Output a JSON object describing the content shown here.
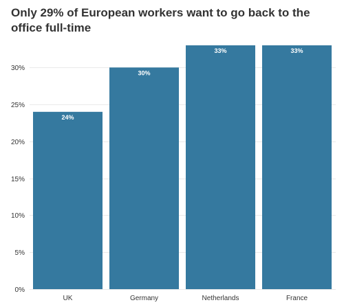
{
  "chart_data": {
    "type": "bar",
    "title": "Only 29% of European workers want to go back to the office full-time",
    "categories": [
      "UK",
      "Germany",
      "Netherlands",
      "France"
    ],
    "values": [
      24,
      30,
      33,
      33
    ],
    "data_labels": [
      "24%",
      "30%",
      "33%",
      "33%"
    ],
    "xlabel": "",
    "ylabel": "",
    "ylim": [
      0,
      33
    ],
    "yticks": [
      0,
      5,
      10,
      15,
      20,
      25,
      30
    ],
    "ytick_labels": [
      "0%",
      "5%",
      "10%",
      "15%",
      "20%",
      "25%",
      "30%"
    ],
    "grid": true,
    "bar_color": "#35799f"
  }
}
